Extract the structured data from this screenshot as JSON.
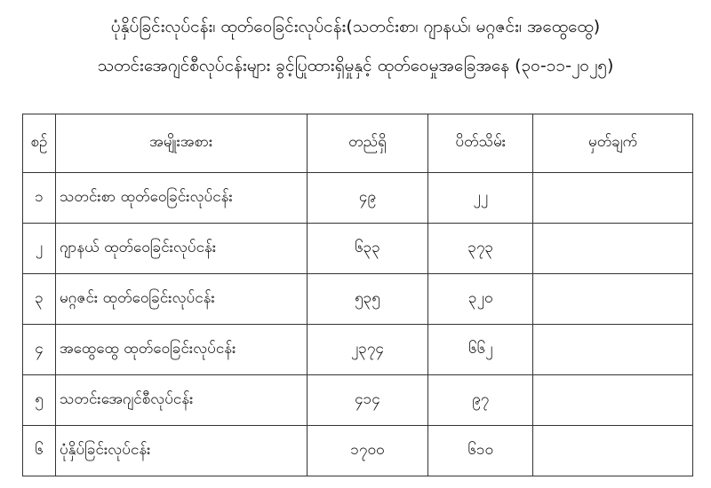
{
  "title": {
    "line1": "ပုံနှိပ်ခြင်းလုပ်ငန်း၊ ထုတ်ဝေခြင်းလုပ်ငန်း(သတင်းစာ၊ ဂျာနယ်၊ မဂ္ဂဇင်း၊ အထွေထွေ)",
    "line2": "သတင်းအေဂျင်စီလုပ်ငန်းများ ခွင့်ပြုထားရှိမှုနှင့် ထုတ်ဝေမှုအခြေအနေ (၃၀-၁၁-၂၀၂၅)"
  },
  "table": {
    "headers": [
      "စဉ်",
      "အမျိုးအစား",
      "တည်ရှိ",
      "ပိတ်သိမ်း",
      "မှတ်ချက်"
    ],
    "rows": [
      {
        "no": "၁",
        "type": "သတင်းစာ ထုတ်ဝေခြင်းလုပ်ငန်း",
        "existing": "၄၉",
        "closed": "၂၂",
        "remark": ""
      },
      {
        "no": "၂",
        "type": "ဂျာနယ် ထုတ်ဝေခြင်းလုပ်ငန်း",
        "existing": "၆၃၃",
        "closed": "၃၇၃",
        "remark": ""
      },
      {
        "no": "၃",
        "type": "မဂ္ဂဇင်း ထုတ်ဝေခြင်းလုပ်ငန်း",
        "existing": "၅၃၅",
        "closed": "၃၂၀",
        "remark": ""
      },
      {
        "no": "၄",
        "type": "အထွေထွေ ထုတ်ဝေခြင်းလုပ်ငန်း",
        "existing": "၂၃၇၄",
        "closed": "၆၆၂",
        "remark": ""
      },
      {
        "no": "၅",
        "type": "သတင်းအေဂျင်စီလုပ်ငန်း",
        "existing": "၄၁၄",
        "closed": "၉၇",
        "remark": ""
      },
      {
        "no": "၆",
        "type": "ပုံနှိပ်ခြင်းလုပ်ငန်း",
        "existing": "၁၇၀၀",
        "closed": "၆၁၀",
        "remark": ""
      }
    ]
  }
}
